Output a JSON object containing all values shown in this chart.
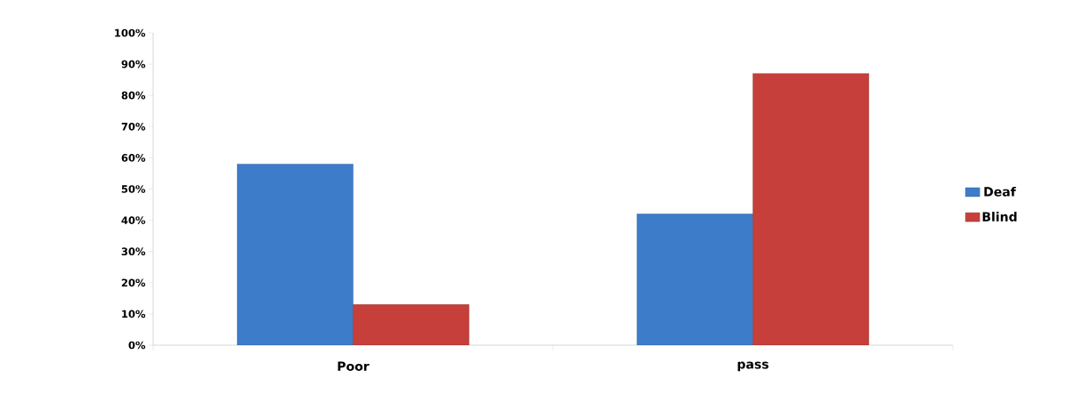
{
  "chart_data": {
    "type": "bar",
    "categories": [
      "Poor",
      "pass"
    ],
    "series": [
      {
        "name": "Deaf",
        "color": "#3d7cc9",
        "values": [
          58,
          42
        ]
      },
      {
        "name": "Blind",
        "color": "#c63f3a",
        "values": [
          13,
          87
        ]
      }
    ],
    "ylim": [
      0,
      100
    ],
    "yticks": [
      {
        "value": 0,
        "label": "0%"
      },
      {
        "value": 10,
        "label": "10%"
      },
      {
        "value": 20,
        "label": "20%"
      },
      {
        "value": 30,
        "label": "30%"
      },
      {
        "value": 40,
        "label": "40%"
      },
      {
        "value": 50,
        "label": "50%"
      },
      {
        "value": 60,
        "label": "60%"
      },
      {
        "value": 70,
        "label": "70%"
      },
      {
        "value": 80,
        "label": "80%"
      },
      {
        "value": 90,
        "label": "90%"
      },
      {
        "value": 100,
        "label": "100%"
      }
    ],
    "grid": false,
    "legend": "right"
  }
}
